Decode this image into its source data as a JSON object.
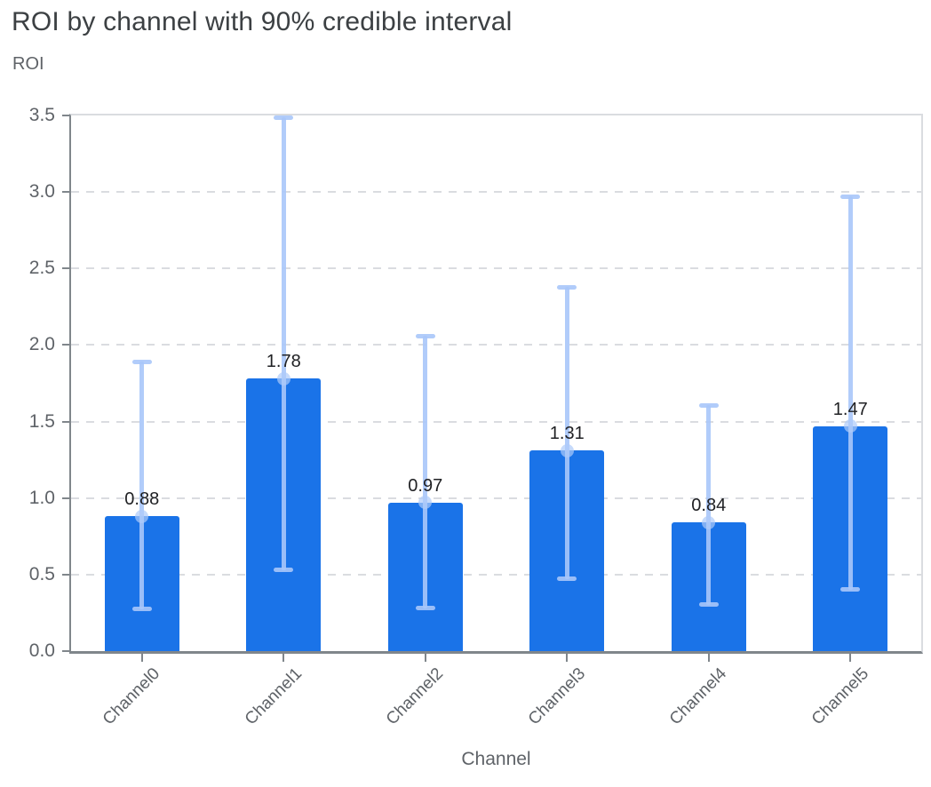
{
  "chart_data": {
    "type": "bar",
    "title": "ROI by channel with 90% credible interval",
    "xlabel": "Channel",
    "ylabel": "ROI",
    "categories": [
      "Channel0",
      "Channel1",
      "Channel2",
      "Channel3",
      "Channel4",
      "Channel5"
    ],
    "series": [
      {
        "name": "ROI point estimate",
        "values": [
          0.88,
          1.78,
          0.97,
          1.31,
          0.84,
          1.47
        ]
      },
      {
        "name": "90% credible interval lower",
        "values": [
          0.27,
          0.53,
          0.28,
          0.47,
          0.3,
          0.4
        ]
      },
      {
        "name": "90% credible interval upper",
        "values": [
          1.89,
          3.49,
          2.06,
          2.38,
          1.61,
          2.97
        ]
      }
    ],
    "bar_labels": [
      "0.88",
      "1.78",
      "0.97",
      "1.31",
      "0.84",
      "1.47"
    ],
    "ylim": [
      0,
      3.5
    ],
    "ytick_interval": 0.5,
    "yticks": [
      "0.0",
      "0.5",
      "1.0",
      "1.5",
      "2.0",
      "2.5",
      "3.0",
      "3.5"
    ],
    "grid": "horizontal dashed",
    "legend_position": "none",
    "colors": {
      "bar": "#1a73e8",
      "error_bar": "#a8c7fa",
      "gridline": "#dadce0",
      "axis_line": "#80868b",
      "title_text": "#3c4043",
      "axis_text": "#5f6368",
      "value_text": "#202124"
    }
  }
}
